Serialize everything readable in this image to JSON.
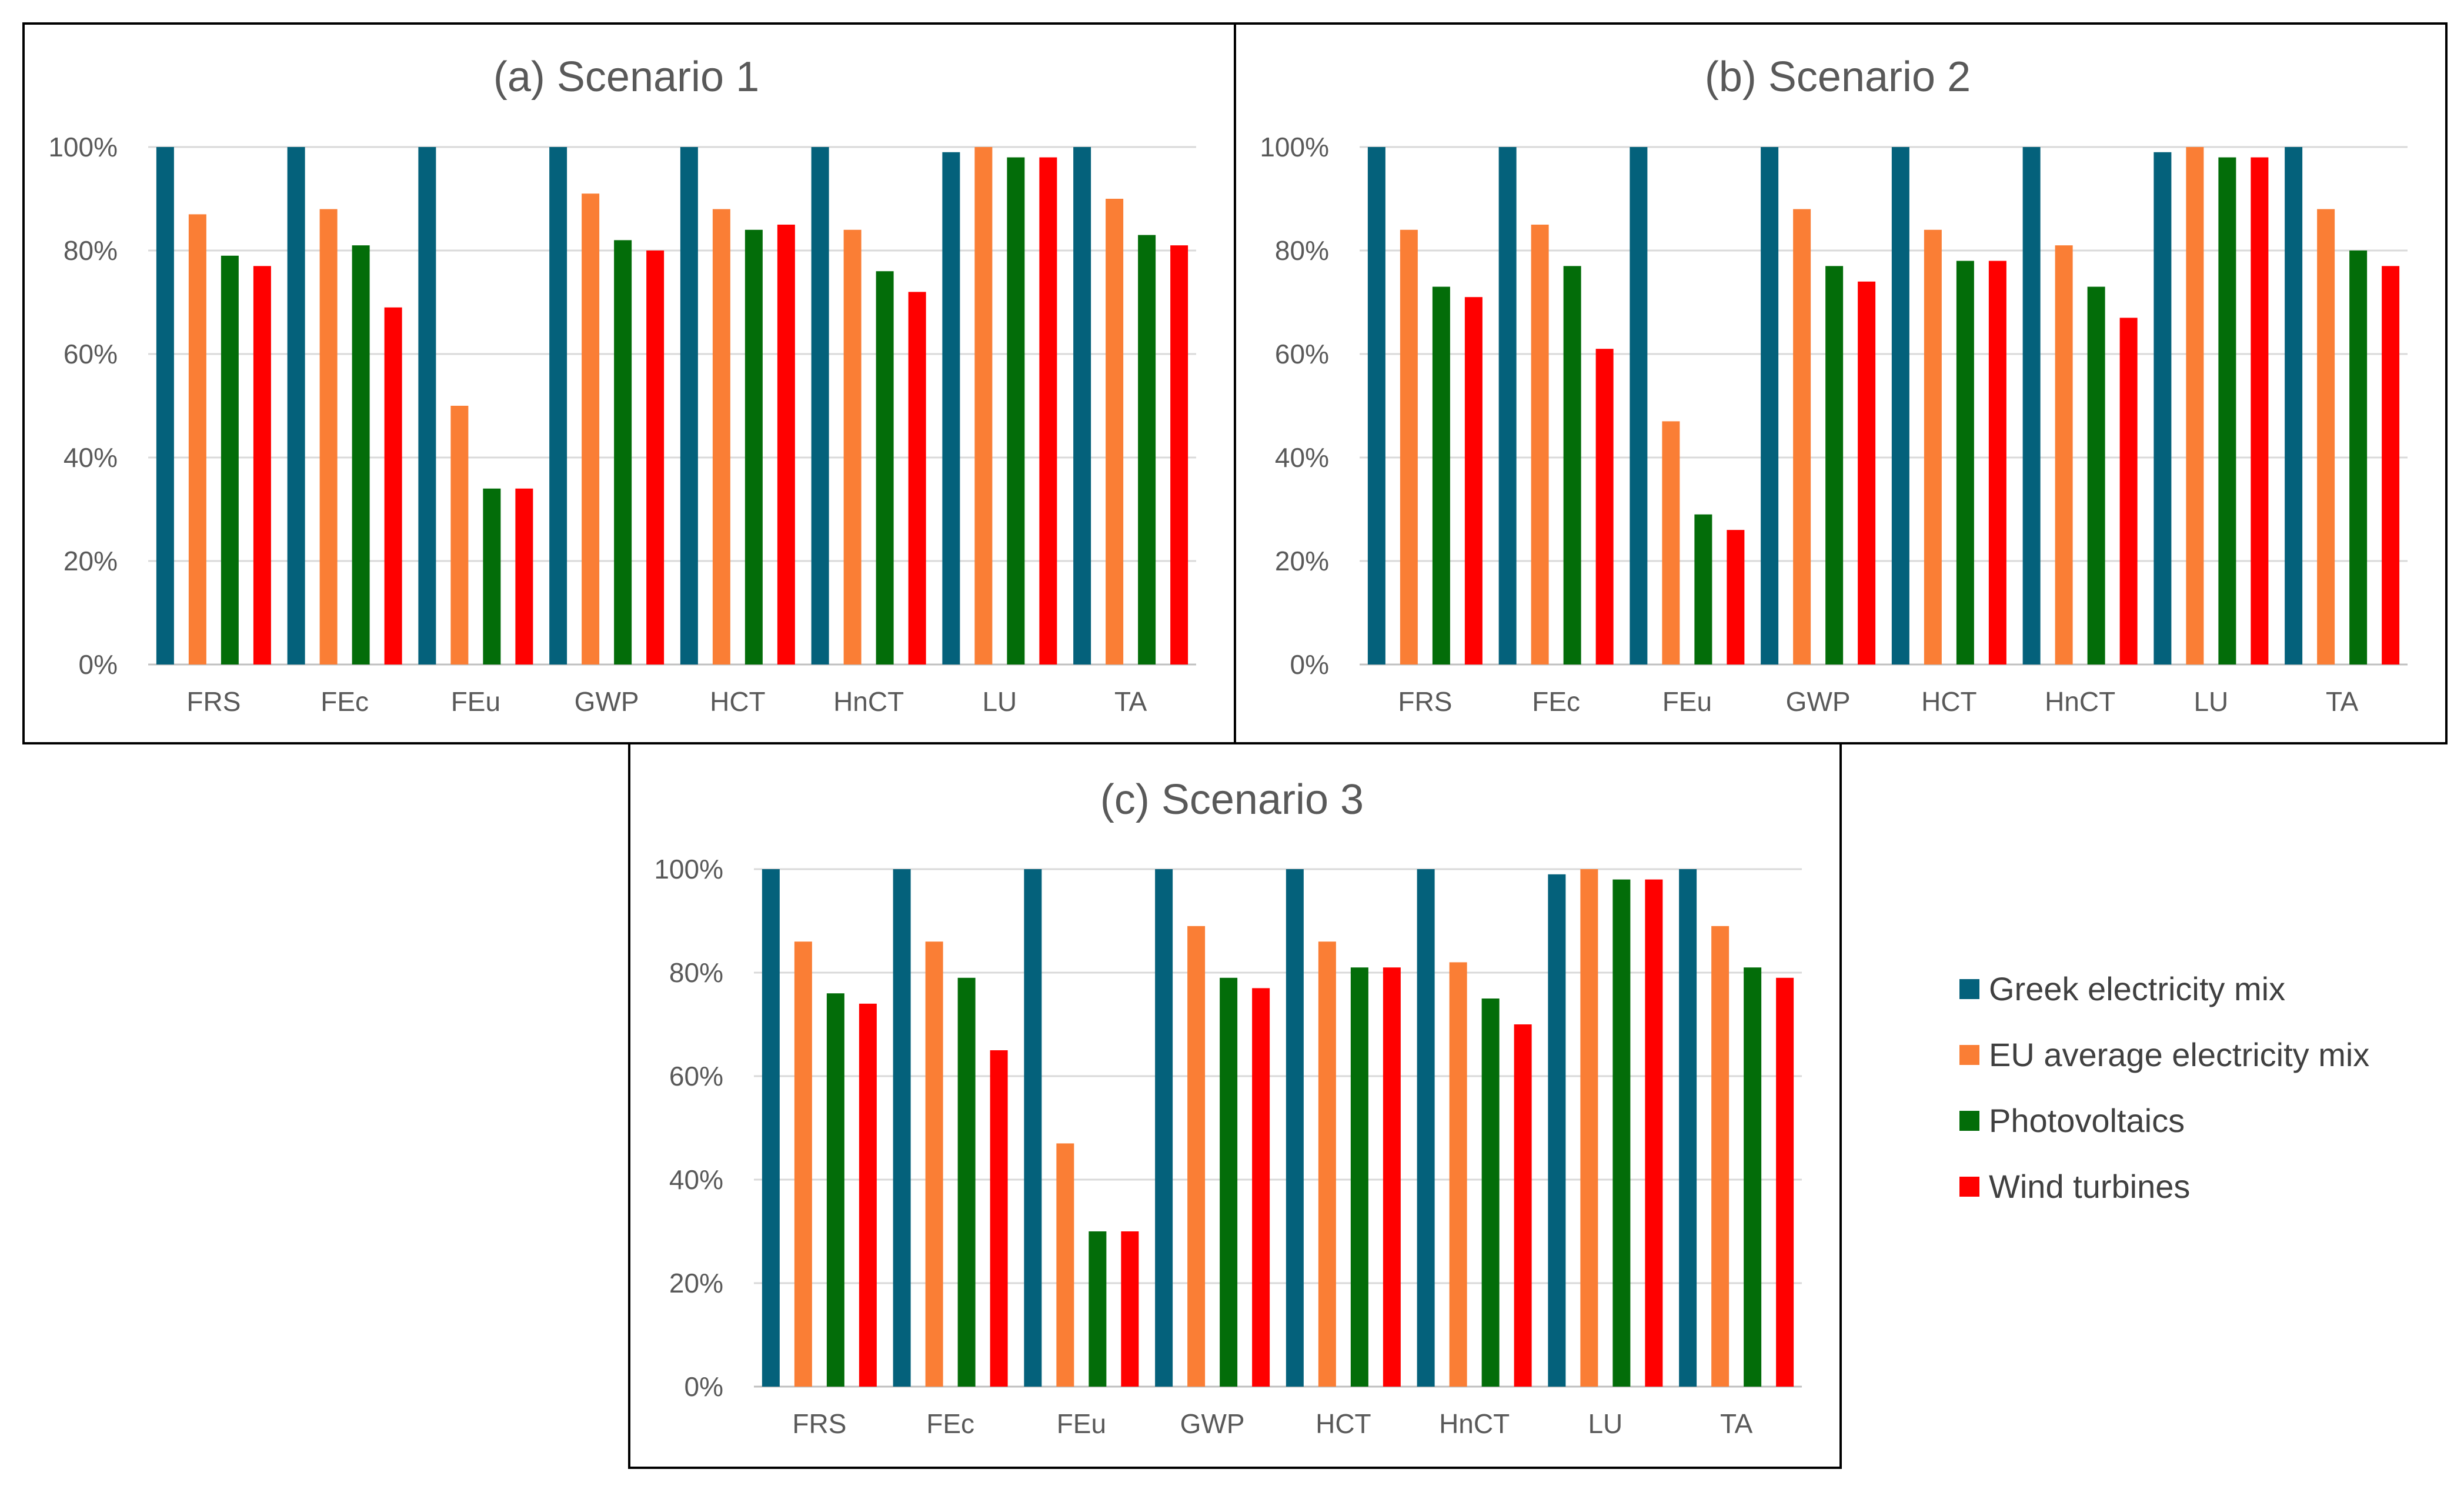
{
  "legend": [
    {
      "name": "Greek electricity mix",
      "color": "#04617b"
    },
    {
      "name": "EU average electricity mix",
      "color": "#fa7e35"
    },
    {
      "name": "Photovoltaics",
      "color": "#036d09"
    },
    {
      "name": "Wind turbines",
      "color": "#ff0000"
    }
  ],
  "chart_data": [
    {
      "type": "bar",
      "title": "(a) Scenario 1",
      "categories": [
        "FRS",
        "FEc",
        "FEu",
        "GWP",
        "HCT",
        "HnCT",
        "LU",
        "TA"
      ],
      "yticks": [
        "0%",
        "20%",
        "40%",
        "60%",
        "80%",
        "100%"
      ],
      "ylim": [
        0,
        100
      ],
      "series": [
        {
          "name": "Greek electricity mix",
          "values": [
            100,
            100,
            100,
            100,
            100,
            100,
            99,
            100
          ]
        },
        {
          "name": "EU average electricity mix",
          "values": [
            87,
            88,
            50,
            91,
            88,
            84,
            100,
            90
          ]
        },
        {
          "name": "Photovoltaics",
          "values": [
            79,
            81,
            34,
            82,
            84,
            76,
            98,
            83
          ]
        },
        {
          "name": "Wind turbines",
          "values": [
            77,
            69,
            34,
            80,
            85,
            72,
            98,
            81
          ]
        }
      ]
    },
    {
      "type": "bar",
      "title": "(b) Scenario 2",
      "categories": [
        "FRS",
        "FEc",
        "FEu",
        "GWP",
        "HCT",
        "HnCT",
        "LU",
        "TA"
      ],
      "yticks": [
        "0%",
        "20%",
        "40%",
        "60%",
        "80%",
        "100%"
      ],
      "ylim": [
        0,
        100
      ],
      "series": [
        {
          "name": "Greek electricity mix",
          "values": [
            100,
            100,
            100,
            100,
            100,
            100,
            99,
            100
          ]
        },
        {
          "name": "EU average electricity mix",
          "values": [
            84,
            85,
            47,
            88,
            84,
            81,
            100,
            88
          ]
        },
        {
          "name": "Photovoltaics",
          "values": [
            73,
            77,
            29,
            77,
            78,
            73,
            98,
            80
          ]
        },
        {
          "name": "Wind turbines",
          "values": [
            71,
            61,
            26,
            74,
            78,
            67,
            98,
            77
          ]
        }
      ]
    },
    {
      "type": "bar",
      "title": "(c) Scenario 3",
      "categories": [
        "FRS",
        "FEc",
        "FEu",
        "GWP",
        "HCT",
        "HnCT",
        "LU",
        "TA"
      ],
      "yticks": [
        "0%",
        "20%",
        "40%",
        "60%",
        "80%",
        "100%"
      ],
      "ylim": [
        0,
        100
      ],
      "series": [
        {
          "name": "Greek electricity mix",
          "values": [
            100,
            100,
            100,
            100,
            100,
            100,
            99,
            100
          ]
        },
        {
          "name": "EU average electricity mix",
          "values": [
            86,
            86,
            47,
            89,
            86,
            82,
            100,
            89
          ]
        },
        {
          "name": "Photovoltaics",
          "values": [
            76,
            79,
            30,
            79,
            81,
            75,
            98,
            81
          ]
        },
        {
          "name": "Wind turbines",
          "values": [
            74,
            65,
            30,
            77,
            81,
            70,
            98,
            79
          ]
        }
      ]
    }
  ]
}
